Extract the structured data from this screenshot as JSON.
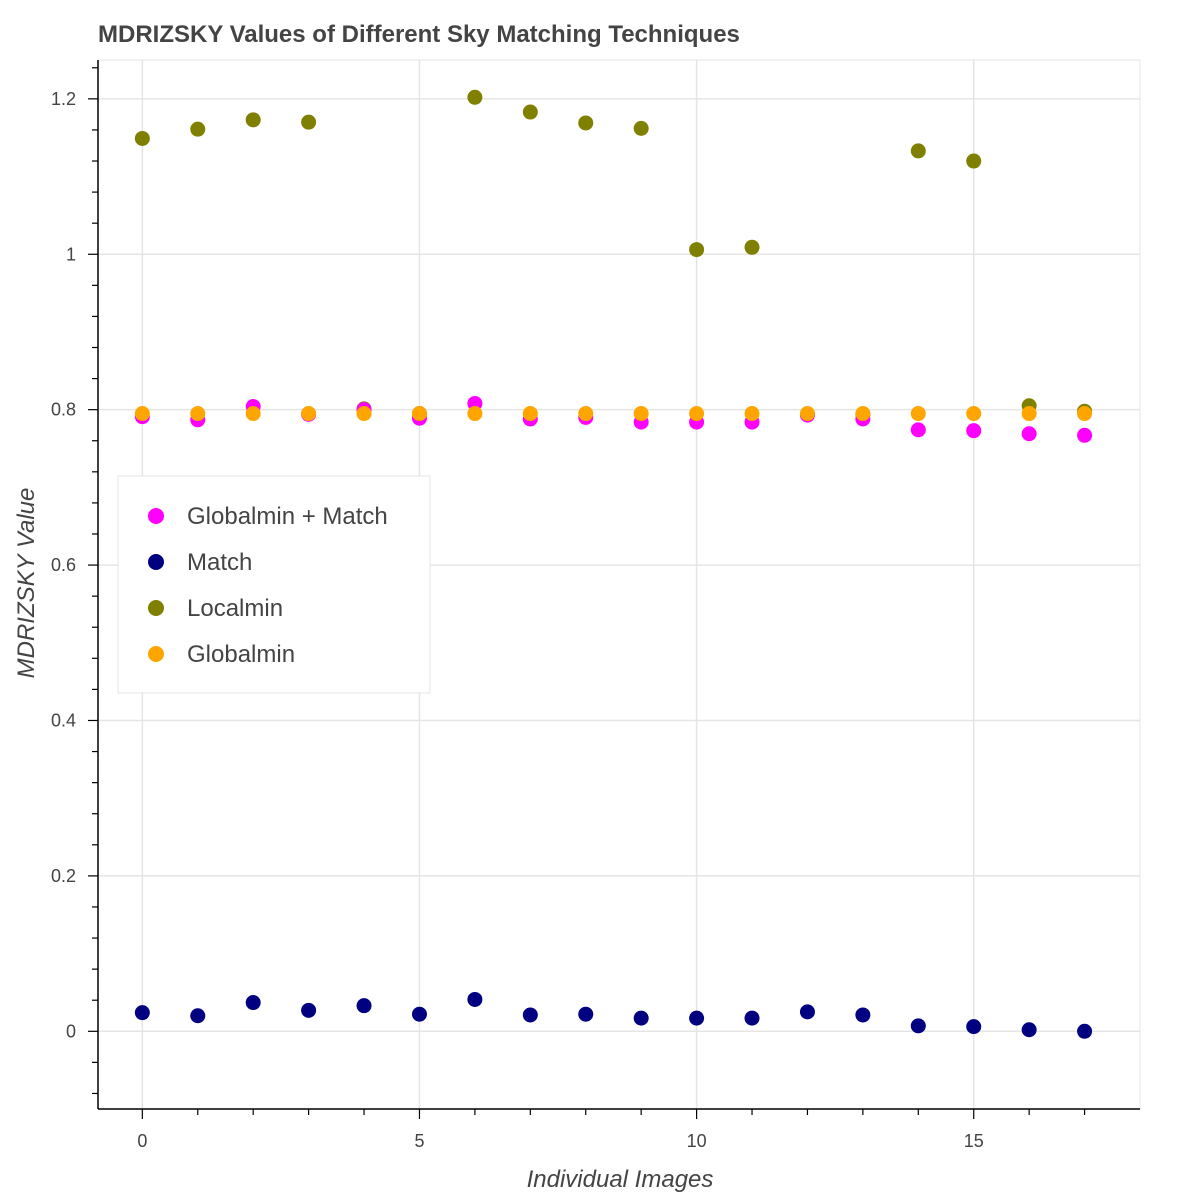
{
  "chart_data": {
    "type": "scatter",
    "title": "MDRIZSKY Values of Different Sky Matching Techniques",
    "xlabel": "Individual Images",
    "ylabel": "MDRIZSKY Value",
    "xlim": [
      -0.8,
      18
    ],
    "ylim": [
      -0.1,
      1.25
    ],
    "x_ticks": [
      0,
      5,
      10,
      15
    ],
    "x_tick_labels": [
      "0",
      "5",
      "10",
      "15"
    ],
    "y_ticks": [
      0,
      0.2,
      0.4,
      0.6,
      0.8,
      1,
      1.2
    ],
    "y_tick_labels": [
      "0",
      "0.2",
      "0.4",
      "0.6",
      "0.8",
      "1",
      "1.2"
    ],
    "grid": true,
    "legend_position": "middle-left",
    "x": [
      0,
      1,
      2,
      3,
      4,
      5,
      6,
      7,
      8,
      9,
      10,
      11,
      12,
      13,
      14,
      15,
      16,
      17
    ],
    "series": [
      {
        "name": "Localmin",
        "color": "#808000",
        "values": [
          1.149,
          1.161,
          1.173,
          1.17,
          0.801,
          0.795,
          1.202,
          1.183,
          1.169,
          1.162,
          1.006,
          1.009,
          0.794,
          0.794,
          1.133,
          1.12,
          0.805,
          0.798
        ]
      },
      {
        "name": "Globalmin + Match",
        "color": "#ff00ff",
        "values": [
          0.791,
          0.787,
          0.804,
          0.794,
          0.8,
          0.789,
          0.808,
          0.788,
          0.79,
          0.784,
          0.784,
          0.784,
          0.793,
          0.788,
          0.774,
          0.773,
          0.769,
          0.767
        ]
      },
      {
        "name": "Match",
        "color": "#000080",
        "values": [
          0.024,
          0.02,
          0.037,
          0.027,
          0.033,
          0.022,
          0.041,
          0.021,
          0.022,
          0.017,
          0.017,
          0.017,
          0.025,
          0.021,
          0.007,
          0.006,
          0.002,
          0.0
        ]
      },
      {
        "name": "Globalmin",
        "color": "#ffa500",
        "values": [
          0.795,
          0.795,
          0.795,
          0.795,
          0.795,
          0.795,
          0.795,
          0.795,
          0.795,
          0.795,
          0.795,
          0.795,
          0.795,
          0.795,
          0.795,
          0.795,
          0.795,
          0.795
        ]
      }
    ],
    "legend_order": [
      "Globalmin + Match",
      "Match",
      "Localmin",
      "Globalmin"
    ]
  }
}
